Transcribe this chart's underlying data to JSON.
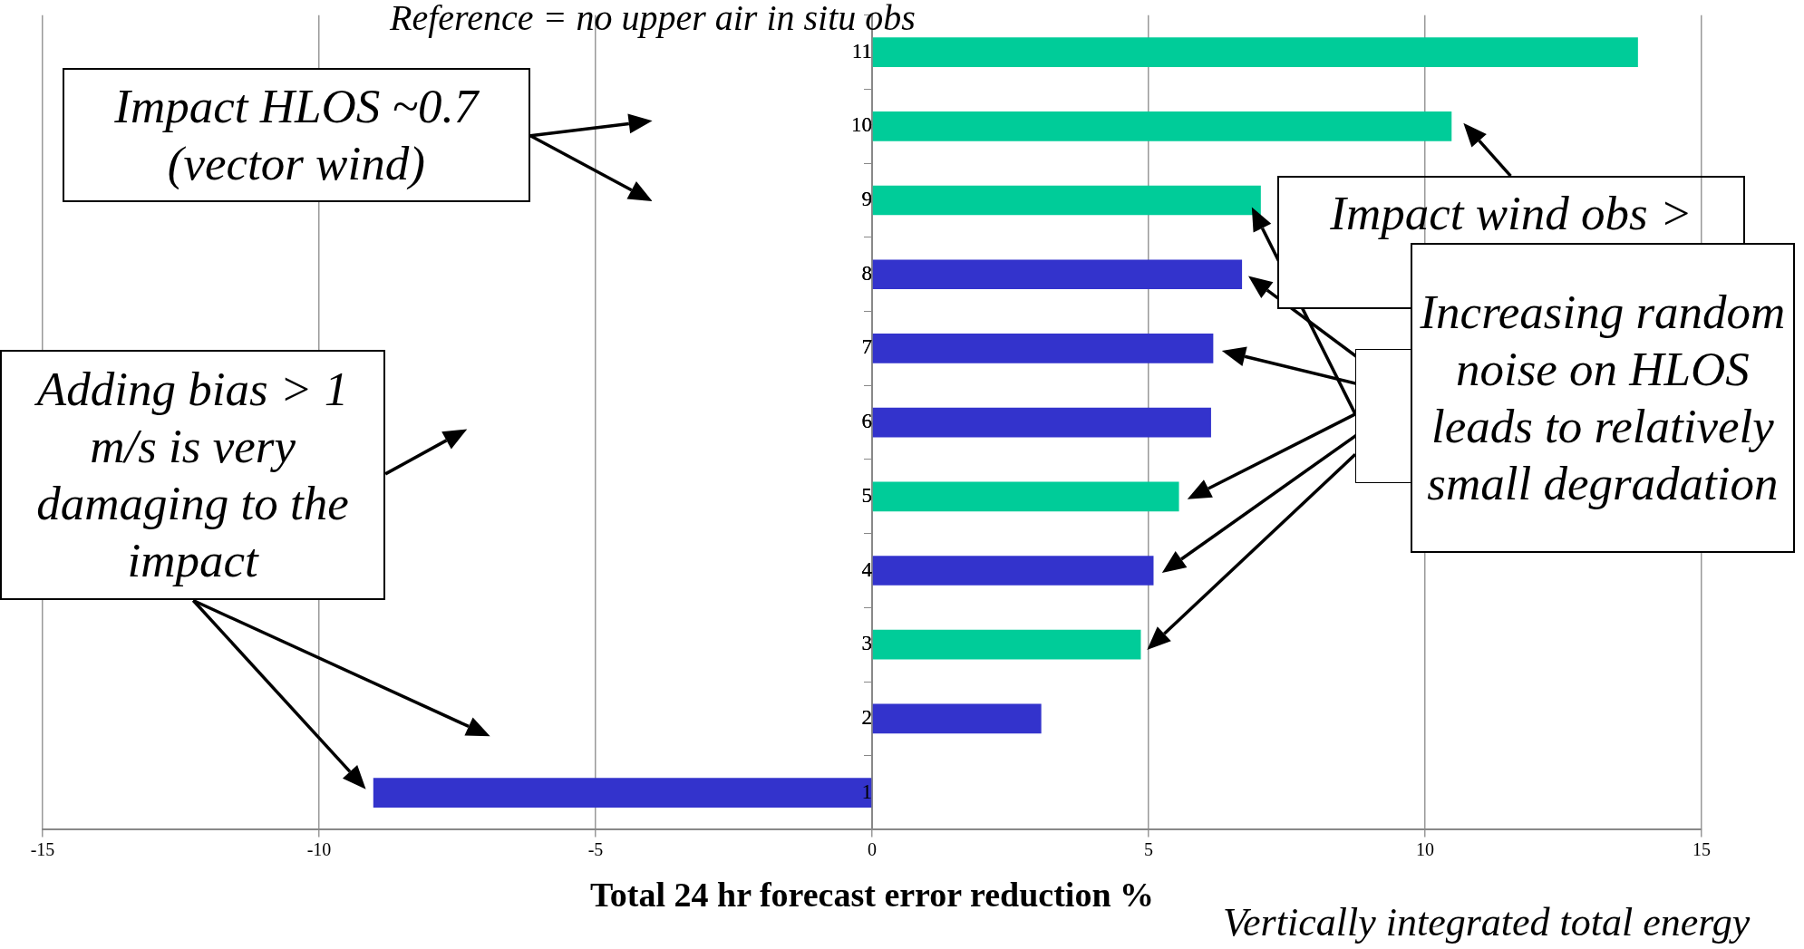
{
  "chart_data": {
    "type": "bar",
    "orientation": "horizontal",
    "title": "Reference = no upper air in situ obs",
    "xlabel": "Total 24 hr forecast error reduction %",
    "categories": [
      "11",
      "10",
      "9",
      "8",
      "7",
      "6",
      "5",
      "4",
      "3",
      "2",
      "1"
    ],
    "values": [
      13.85,
      10.48,
      7.03,
      6.69,
      6.17,
      6.13,
      5.55,
      5.09,
      4.86,
      3.06,
      -9.02
    ],
    "colors": [
      "#00cc99",
      "#00cc99",
      "#00cc99",
      "#3333cc",
      "#3333cc",
      "#3333cc",
      "#00cc99",
      "#3333cc",
      "#00cc99",
      "#3333cc",
      "#3333cc"
    ],
    "xlim": [
      -15,
      15
    ],
    "xticks": [
      -15,
      -10,
      -5,
      0,
      5,
      10,
      15
    ],
    "grid": "x",
    "legend": false,
    "annotations": [
      "Impact HLOS ~0.7 (vector wind)",
      "Adding bias > 1 m/s is very damaging to the impact",
      "Impact wind obs >",
      "Increasing random noise on HLOS leads to relatively small degradation",
      "Vertically integrated total energy"
    ]
  }
}
